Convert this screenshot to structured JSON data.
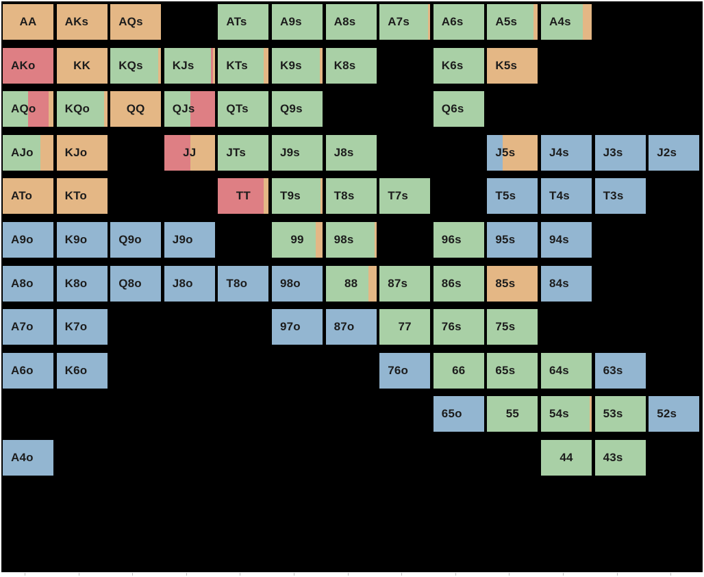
{
  "colors": {
    "green": "#a9d0a6",
    "orange": "#e4b785",
    "red": "#de7f84",
    "blue": "#93b6d1",
    "background": "#000000"
  },
  "grid": {
    "ranks": [
      "A",
      "K",
      "Q",
      "J",
      "T",
      "9",
      "8",
      "7",
      "6",
      "5",
      "4",
      "3",
      "2"
    ],
    "cells": [
      {
        "row": 0,
        "col": 0,
        "label": "AA",
        "fills": [
          [
            "orange",
            1
          ]
        ]
      },
      {
        "row": 0,
        "col": 1,
        "label": "AKs",
        "fills": [
          [
            "orange",
            1
          ]
        ]
      },
      {
        "row": 0,
        "col": 2,
        "label": "AQs",
        "fills": [
          [
            "orange",
            1
          ]
        ]
      },
      {
        "row": 0,
        "col": 4,
        "label": "ATs",
        "fills": [
          [
            "green",
            1
          ]
        ]
      },
      {
        "row": 0,
        "col": 5,
        "label": "A9s",
        "fills": [
          [
            "green",
            1
          ]
        ]
      },
      {
        "row": 0,
        "col": 6,
        "label": "A8s",
        "fills": [
          [
            "green",
            1
          ]
        ]
      },
      {
        "row": 0,
        "col": 7,
        "label": "A7s",
        "fills": [
          [
            "green",
            0.96
          ],
          [
            "orange",
            0.04
          ]
        ]
      },
      {
        "row": 0,
        "col": 8,
        "label": "A6s",
        "fills": [
          [
            "green",
            1
          ]
        ]
      },
      {
        "row": 0,
        "col": 9,
        "label": "A5s",
        "fills": [
          [
            "green",
            0.92
          ],
          [
            "orange",
            0.08
          ]
        ]
      },
      {
        "row": 0,
        "col": 10,
        "label": "A4s",
        "fills": [
          [
            "green",
            0.82
          ],
          [
            "orange",
            0.18
          ]
        ]
      },
      {
        "row": 1,
        "col": 0,
        "label": "AKo",
        "fills": [
          [
            "red",
            1
          ]
        ]
      },
      {
        "row": 1,
        "col": 1,
        "label": "KK",
        "fills": [
          [
            "orange",
            1
          ]
        ]
      },
      {
        "row": 1,
        "col": 2,
        "label": "KQs",
        "fills": [
          [
            "green",
            0.95
          ],
          [
            "orange",
            0.05
          ]
        ]
      },
      {
        "row": 1,
        "col": 3,
        "label": "KJs",
        "fills": [
          [
            "green",
            0.92
          ],
          [
            "red",
            0.04
          ],
          [
            "orange",
            0.04
          ]
        ]
      },
      {
        "row": 1,
        "col": 4,
        "label": "KTs",
        "fills": [
          [
            "green",
            0.9
          ],
          [
            "orange",
            0.1
          ]
        ]
      },
      {
        "row": 1,
        "col": 5,
        "label": "K9s",
        "fills": [
          [
            "green",
            0.94
          ],
          [
            "orange",
            0.06
          ]
        ]
      },
      {
        "row": 1,
        "col": 6,
        "label": "K8s",
        "fills": [
          [
            "green",
            1
          ]
        ]
      },
      {
        "row": 1,
        "col": 8,
        "label": "K6s",
        "fills": [
          [
            "green",
            1
          ]
        ]
      },
      {
        "row": 1,
        "col": 9,
        "label": "K5s",
        "fills": [
          [
            "orange",
            1
          ]
        ]
      },
      {
        "row": 2,
        "col": 0,
        "label": "AQo",
        "fills": [
          [
            "green",
            0.5
          ],
          [
            "red",
            0.4
          ],
          [
            "orange",
            0.1
          ]
        ]
      },
      {
        "row": 2,
        "col": 1,
        "label": "KQo",
        "fills": [
          [
            "green",
            0.94
          ],
          [
            "orange",
            0.06
          ]
        ]
      },
      {
        "row": 2,
        "col": 2,
        "label": "QQ",
        "fills": [
          [
            "orange",
            1
          ]
        ]
      },
      {
        "row": 2,
        "col": 3,
        "label": "QJs",
        "fills": [
          [
            "green",
            0.52
          ],
          [
            "red",
            0.48
          ]
        ]
      },
      {
        "row": 2,
        "col": 4,
        "label": "QTs",
        "fills": [
          [
            "green",
            1
          ]
        ]
      },
      {
        "row": 2,
        "col": 5,
        "label": "Q9s",
        "fills": [
          [
            "green",
            1
          ]
        ]
      },
      {
        "row": 2,
        "col": 8,
        "label": "Q6s",
        "fills": [
          [
            "green",
            1
          ]
        ]
      },
      {
        "row": 3,
        "col": 0,
        "label": "AJo",
        "fills": [
          [
            "green",
            0.74
          ],
          [
            "orange",
            0.26
          ]
        ]
      },
      {
        "row": 3,
        "col": 1,
        "label": "KJo",
        "fills": [
          [
            "orange",
            1
          ]
        ]
      },
      {
        "row": 3,
        "col": 3,
        "label": "JJ",
        "fills": [
          [
            "red",
            0.52
          ],
          [
            "orange",
            0.48
          ]
        ]
      },
      {
        "row": 3,
        "col": 4,
        "label": "JTs",
        "fills": [
          [
            "green",
            1
          ]
        ]
      },
      {
        "row": 3,
        "col": 5,
        "label": "J9s",
        "fills": [
          [
            "green",
            1
          ]
        ]
      },
      {
        "row": 3,
        "col": 6,
        "label": "J8s",
        "fills": [
          [
            "green",
            1
          ]
        ]
      },
      {
        "row": 3,
        "col": 9,
        "label": "J5s",
        "fills": [
          [
            "blue",
            0.3
          ],
          [
            "orange",
            0.7
          ]
        ]
      },
      {
        "row": 3,
        "col": 10,
        "label": "J4s",
        "fills": [
          [
            "blue",
            1
          ]
        ]
      },
      {
        "row": 3,
        "col": 11,
        "label": "J3s",
        "fills": [
          [
            "blue",
            1
          ]
        ]
      },
      {
        "row": 3,
        "col": 12,
        "label": "J2s",
        "fills": [
          [
            "blue",
            1
          ]
        ]
      },
      {
        "row": 4,
        "col": 0,
        "label": "ATo",
        "fills": [
          [
            "orange",
            1
          ]
        ]
      },
      {
        "row": 4,
        "col": 1,
        "label": "KTo",
        "fills": [
          [
            "orange",
            1
          ]
        ]
      },
      {
        "row": 4,
        "col": 4,
        "label": "TT",
        "fills": [
          [
            "red",
            0.9
          ],
          [
            "orange",
            0.1
          ]
        ]
      },
      {
        "row": 4,
        "col": 5,
        "label": "T9s",
        "fills": [
          [
            "green",
            0.96
          ],
          [
            "orange",
            0.04
          ]
        ]
      },
      {
        "row": 4,
        "col": 6,
        "label": "T8s",
        "fills": [
          [
            "green",
            1
          ]
        ]
      },
      {
        "row": 4,
        "col": 7,
        "label": "T7s",
        "fills": [
          [
            "green",
            1
          ]
        ]
      },
      {
        "row": 4,
        "col": 9,
        "label": "T5s",
        "fills": [
          [
            "blue",
            1
          ]
        ]
      },
      {
        "row": 4,
        "col": 10,
        "label": "T4s",
        "fills": [
          [
            "blue",
            1
          ]
        ]
      },
      {
        "row": 4,
        "col": 11,
        "label": "T3s",
        "fills": [
          [
            "blue",
            1
          ]
        ]
      },
      {
        "row": 5,
        "col": 0,
        "label": "A9o",
        "fills": [
          [
            "blue",
            1
          ]
        ]
      },
      {
        "row": 5,
        "col": 1,
        "label": "K9o",
        "fills": [
          [
            "blue",
            1
          ]
        ]
      },
      {
        "row": 5,
        "col": 2,
        "label": "Q9o",
        "fills": [
          [
            "blue",
            1
          ]
        ]
      },
      {
        "row": 5,
        "col": 3,
        "label": "J9o",
        "fills": [
          [
            "blue",
            1
          ]
        ]
      },
      {
        "row": 5,
        "col": 5,
        "label": "99",
        "fills": [
          [
            "green",
            0.86
          ],
          [
            "orange",
            0.14
          ]
        ]
      },
      {
        "row": 5,
        "col": 6,
        "label": "98s",
        "fills": [
          [
            "green",
            0.96
          ],
          [
            "orange",
            0.04
          ]
        ]
      },
      {
        "row": 5,
        "col": 8,
        "label": "96s",
        "fills": [
          [
            "green",
            1
          ]
        ]
      },
      {
        "row": 5,
        "col": 9,
        "label": "95s",
        "fills": [
          [
            "blue",
            1
          ]
        ]
      },
      {
        "row": 5,
        "col": 10,
        "label": "94s",
        "fills": [
          [
            "blue",
            1
          ]
        ]
      },
      {
        "row": 6,
        "col": 0,
        "label": "A8o",
        "fills": [
          [
            "blue",
            1
          ]
        ]
      },
      {
        "row": 6,
        "col": 1,
        "label": "K8o",
        "fills": [
          [
            "blue",
            1
          ]
        ]
      },
      {
        "row": 6,
        "col": 2,
        "label": "Q8o",
        "fills": [
          [
            "blue",
            1
          ]
        ]
      },
      {
        "row": 6,
        "col": 3,
        "label": "J8o",
        "fills": [
          [
            "blue",
            1
          ]
        ]
      },
      {
        "row": 6,
        "col": 4,
        "label": "T8o",
        "fills": [
          [
            "blue",
            1
          ]
        ]
      },
      {
        "row": 6,
        "col": 5,
        "label": "98o",
        "fills": [
          [
            "blue",
            1
          ]
        ]
      },
      {
        "row": 6,
        "col": 6,
        "label": "88",
        "fills": [
          [
            "green",
            0.84
          ],
          [
            "orange",
            0.16
          ]
        ]
      },
      {
        "row": 6,
        "col": 7,
        "label": "87s",
        "fills": [
          [
            "green",
            1
          ]
        ]
      },
      {
        "row": 6,
        "col": 8,
        "label": "86s",
        "fills": [
          [
            "green",
            1
          ]
        ]
      },
      {
        "row": 6,
        "col": 9,
        "label": "85s",
        "fills": [
          [
            "orange",
            1
          ]
        ]
      },
      {
        "row": 6,
        "col": 10,
        "label": "84s",
        "fills": [
          [
            "blue",
            1
          ]
        ]
      },
      {
        "row": 7,
        "col": 0,
        "label": "A7o",
        "fills": [
          [
            "blue",
            1
          ]
        ]
      },
      {
        "row": 7,
        "col": 1,
        "label": "K7o",
        "fills": [
          [
            "blue",
            1
          ]
        ]
      },
      {
        "row": 7,
        "col": 5,
        "label": "97o",
        "fills": [
          [
            "blue",
            1
          ]
        ]
      },
      {
        "row": 7,
        "col": 6,
        "label": "87o",
        "fills": [
          [
            "blue",
            1
          ]
        ]
      },
      {
        "row": 7,
        "col": 7,
        "label": "77",
        "fills": [
          [
            "green",
            1
          ]
        ]
      },
      {
        "row": 7,
        "col": 8,
        "label": "76s",
        "fills": [
          [
            "green",
            1
          ]
        ]
      },
      {
        "row": 7,
        "col": 9,
        "label": "75s",
        "fills": [
          [
            "green",
            1
          ]
        ]
      },
      {
        "row": 8,
        "col": 0,
        "label": "A6o",
        "fills": [
          [
            "blue",
            1
          ]
        ]
      },
      {
        "row": 8,
        "col": 1,
        "label": "K6o",
        "fills": [
          [
            "blue",
            1
          ]
        ]
      },
      {
        "row": 8,
        "col": 7,
        "label": "76o",
        "fills": [
          [
            "blue",
            1
          ]
        ]
      },
      {
        "row": 8,
        "col": 8,
        "label": "66",
        "fills": [
          [
            "green",
            1
          ]
        ]
      },
      {
        "row": 8,
        "col": 9,
        "label": "65s",
        "fills": [
          [
            "green",
            1
          ]
        ]
      },
      {
        "row": 8,
        "col": 10,
        "label": "64s",
        "fills": [
          [
            "green",
            1
          ]
        ]
      },
      {
        "row": 8,
        "col": 11,
        "label": "63s",
        "fills": [
          [
            "blue",
            1
          ]
        ]
      },
      {
        "row": 9,
        "col": 8,
        "label": "65o",
        "fills": [
          [
            "blue",
            1
          ]
        ]
      },
      {
        "row": 9,
        "col": 9,
        "label": "55",
        "fills": [
          [
            "green",
            1
          ]
        ]
      },
      {
        "row": 9,
        "col": 10,
        "label": "54s",
        "fills": [
          [
            "green",
            0.96
          ],
          [
            "orange",
            0.04
          ]
        ]
      },
      {
        "row": 9,
        "col": 11,
        "label": "53s",
        "fills": [
          [
            "green",
            1
          ]
        ]
      },
      {
        "row": 9,
        "col": 12,
        "label": "52s",
        "fills": [
          [
            "blue",
            1
          ]
        ]
      },
      {
        "row": 10,
        "col": 0,
        "label": "A4o",
        "fills": [
          [
            "blue",
            1
          ]
        ]
      },
      {
        "row": 10,
        "col": 10,
        "label": "44",
        "fills": [
          [
            "green",
            1
          ]
        ]
      },
      {
        "row": 10,
        "col": 11,
        "label": "43s",
        "fills": [
          [
            "green",
            1
          ]
        ]
      }
    ]
  }
}
